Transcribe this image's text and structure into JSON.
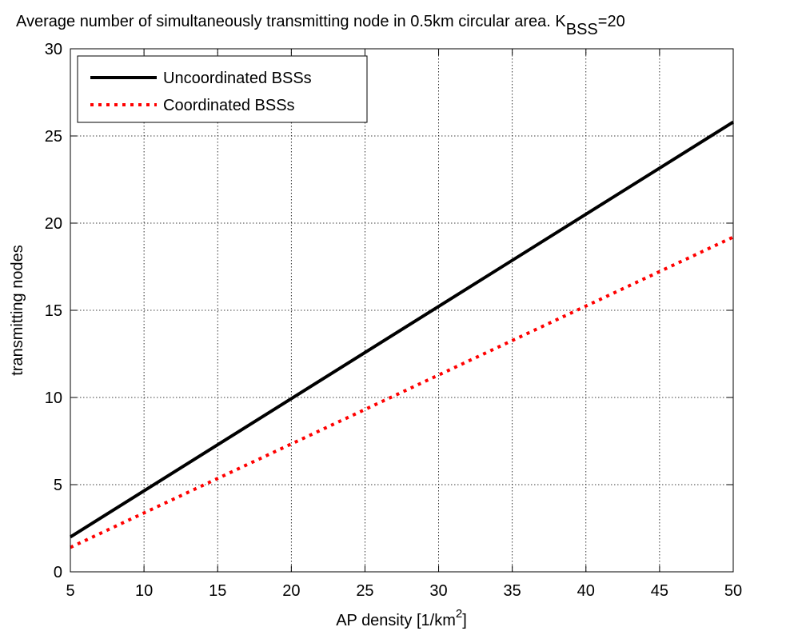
{
  "chart_data": {
    "type": "line",
    "title": {
      "main": "Average number of simultaneously transmitting node in 0.5km circular area. K",
      "subscript": "BSS",
      "suffix": "=20"
    },
    "xlabel": {
      "main": "AP density [1/km",
      "superscript": "2",
      "suffix": "]"
    },
    "ylabel": "transmitting nodes",
    "xlim": [
      5,
      50
    ],
    "ylim": [
      0,
      30
    ],
    "xticks": [
      5,
      10,
      15,
      20,
      25,
      30,
      35,
      40,
      45,
      50
    ],
    "yticks": [
      0,
      5,
      10,
      15,
      20,
      25,
      30
    ],
    "grid": true,
    "legend_position": "top-left",
    "series": [
      {
        "name": "Uncoordinated BSSs",
        "color": "#000000",
        "line_style": "solid",
        "x": [
          5,
          50
        ],
        "y": [
          2.0,
          25.8
        ]
      },
      {
        "name": "Coordinated BSSs",
        "color": "#ff0000",
        "line_style": "dotted",
        "x": [
          5,
          50
        ],
        "y": [
          1.4,
          19.2
        ]
      }
    ]
  }
}
